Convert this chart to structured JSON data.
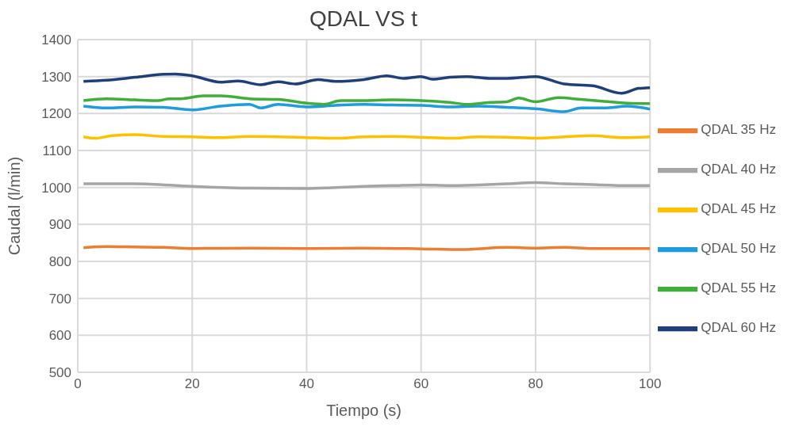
{
  "chart_data": {
    "type": "line",
    "title": "QDAL VS t",
    "xlabel": "Tiempo (s)",
    "ylabel": "Caudal (l/min)",
    "xlim": [
      0,
      100
    ],
    "xticks": [
      0,
      20,
      40,
      60,
      80,
      100
    ],
    "ylim": [
      500,
      1400
    ],
    "yticks": [
      500,
      600,
      700,
      800,
      900,
      1000,
      1100,
      1200,
      1300,
      1400
    ],
    "grid": true,
    "legend": "right",
    "marker": "none",
    "line_style": "solid",
    "series": [
      {
        "name": "QDAL 35 Hz",
        "color": "#ed7d31",
        "x": [
          1,
          5,
          10,
          15,
          20,
          30,
          40,
          50,
          60,
          67,
          75,
          80,
          85,
          90,
          100
        ],
        "values": [
          837,
          840,
          839,
          838,
          835,
          836,
          835,
          836,
          834,
          832,
          838,
          836,
          838,
          835,
          835
        ]
      },
      {
        "name": "QDAL 40 Hz",
        "color": "#a5a5a5",
        "x": [
          1,
          10,
          20,
          30,
          40,
          45,
          50,
          55,
          60,
          65,
          70,
          75,
          80,
          85,
          90,
          95,
          100
        ],
        "values": [
          1010,
          1010,
          1003,
          998,
          997,
          1000,
          1003,
          1005,
          1007,
          1005,
          1007,
          1010,
          1013,
          1010,
          1008,
          1005,
          1005
        ]
      },
      {
        "name": "QDAL 45 Hz",
        "color": "#ffc000",
        "x": [
          1,
          3,
          6,
          10,
          15,
          20,
          25,
          30,
          35,
          40,
          45,
          50,
          55,
          60,
          65,
          70,
          75,
          80,
          85,
          90,
          95,
          100
        ],
        "values": [
          1137,
          1133,
          1140,
          1143,
          1138,
          1137,
          1135,
          1138,
          1137,
          1135,
          1133,
          1137,
          1138,
          1136,
          1133,
          1137,
          1136,
          1133,
          1137,
          1140,
          1135,
          1137
        ]
      },
      {
        "name": "QDAL 50 Hz",
        "color": "#1f9be0",
        "x": [
          1,
          5,
          10,
          15,
          20,
          25,
          30,
          32,
          35,
          40,
          45,
          50,
          55,
          60,
          65,
          70,
          75,
          80,
          85,
          88,
          92,
          96,
          100
        ],
        "values": [
          1220,
          1215,
          1218,
          1217,
          1210,
          1220,
          1225,
          1215,
          1225,
          1218,
          1222,
          1225,
          1223,
          1222,
          1218,
          1220,
          1217,
          1213,
          1205,
          1215,
          1215,
          1220,
          1212
        ]
      },
      {
        "name": "QDAL 55 Hz",
        "color": "#3fae3a",
        "x": [
          1,
          5,
          10,
          14,
          16,
          18,
          22,
          25,
          30,
          35,
          40,
          43,
          46,
          50,
          55,
          60,
          65,
          68,
          72,
          75,
          77,
          80,
          84,
          88,
          92,
          96,
          100
        ],
        "values": [
          1235,
          1240,
          1237,
          1235,
          1240,
          1240,
          1248,
          1248,
          1240,
          1238,
          1228,
          1225,
          1235,
          1235,
          1237,
          1235,
          1230,
          1225,
          1230,
          1232,
          1242,
          1232,
          1243,
          1238,
          1233,
          1228,
          1227
        ]
      },
      {
        "name": "QDAL 60 Hz",
        "color": "#1f3f7a",
        "x": [
          1,
          5,
          10,
          15,
          17,
          20,
          25,
          28,
          32,
          35,
          38,
          42,
          45,
          50,
          54,
          57,
          60,
          62,
          65,
          68,
          72,
          75,
          80,
          85,
          90,
          95,
          98,
          100
        ],
        "values": [
          1287,
          1290,
          1298,
          1306,
          1307,
          1302,
          1285,
          1288,
          1278,
          1286,
          1280,
          1292,
          1287,
          1292,
          1302,
          1295,
          1300,
          1293,
          1298,
          1300,
          1295,
          1295,
          1300,
          1280,
          1275,
          1255,
          1268,
          1270
        ]
      }
    ]
  }
}
